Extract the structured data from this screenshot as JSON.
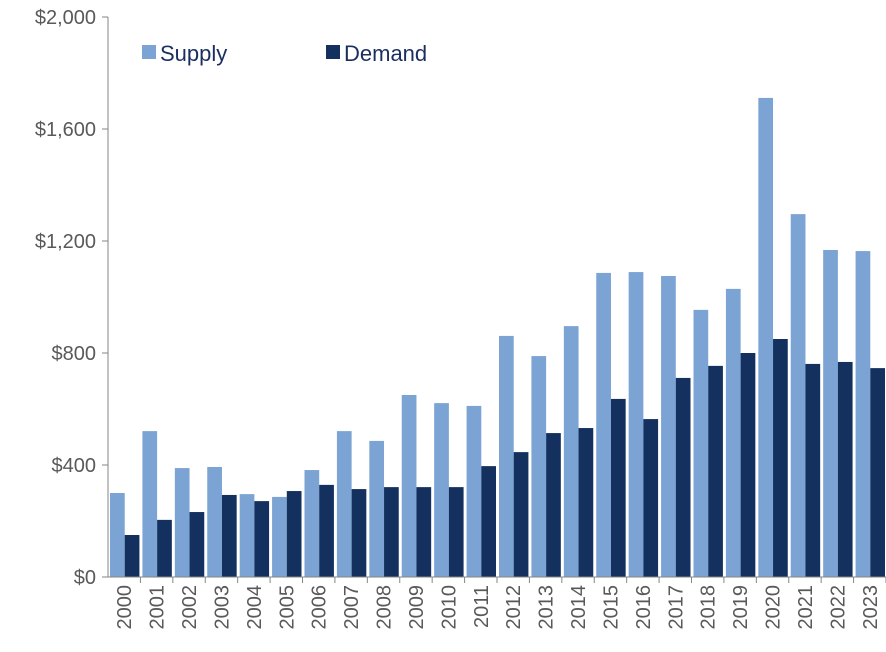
{
  "chart_data": {
    "type": "bar",
    "categories": [
      "2000",
      "2001",
      "2002",
      "2003",
      "2004",
      "2005",
      "2006",
      "2007",
      "2008",
      "2009",
      "2010",
      "2011",
      "2012",
      "2013",
      "2014",
      "2015",
      "2016",
      "2017",
      "2018",
      "2019",
      "2020",
      "2021",
      "2022",
      "2023"
    ],
    "series": [
      {
        "name": "Supply",
        "color": "#7ba3d4",
        "values": [
          300,
          521,
          389,
          393,
          296,
          286,
          382,
          521,
          486,
          650,
          621,
          611,
          861,
          789,
          896,
          1086,
          1089,
          1075,
          954,
          1029,
          1711,
          1296,
          1168,
          1164
        ]
      },
      {
        "name": "Demand",
        "color": "#13305e",
        "values": [
          150,
          204,
          232,
          293,
          271,
          307,
          329,
          314,
          321,
          321,
          321,
          396,
          446,
          514,
          532,
          636,
          564,
          711,
          754,
          800,
          850,
          761,
          768,
          746
        ]
      }
    ],
    "ylim": [
      0,
      2000
    ],
    "yticks": [
      {
        "value": 0,
        "label": "$0"
      },
      {
        "value": 400,
        "label": "$400"
      },
      {
        "value": 800,
        "label": "$800"
      },
      {
        "value": 1200,
        "label": "$1,200"
      },
      {
        "value": 1600,
        "label": "$1,600"
      },
      {
        "value": 2000,
        "label": "$2,000"
      }
    ],
    "legend": "top-left"
  }
}
